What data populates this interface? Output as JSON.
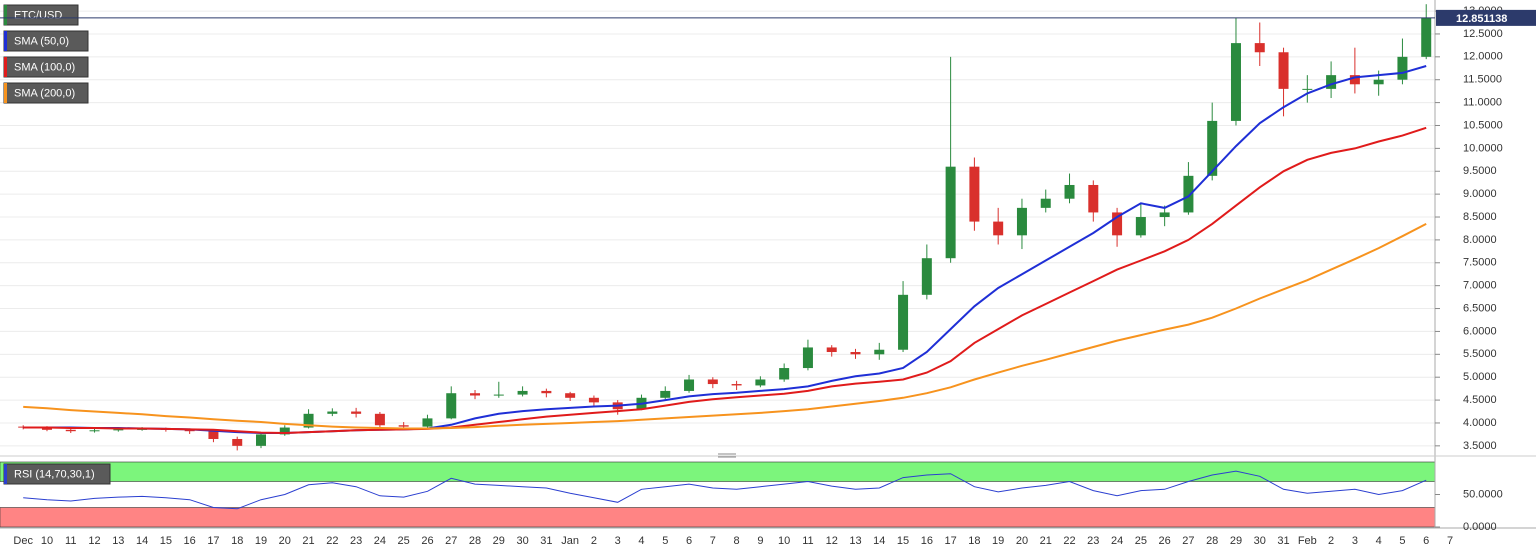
{
  "chart_data": {
    "type": "candlestick",
    "symbol": "ETC/USD",
    "up_color": "#2a8a3e",
    "down_color": "#d9302c",
    "categories": [
      "Dec",
      "10",
      "11",
      "12",
      "13",
      "14",
      "15",
      "16",
      "17",
      "18",
      "19",
      "20",
      "21",
      "22",
      "23",
      "24",
      "25",
      "26",
      "27",
      "28",
      "29",
      "30",
      "31",
      "Jan",
      "2",
      "3",
      "4",
      "5",
      "6",
      "7",
      "8",
      "9",
      "10",
      "11",
      "12",
      "13",
      "14",
      "15",
      "16",
      "17",
      "18",
      "19",
      "20",
      "21",
      "22",
      "23",
      "24",
      "25",
      "26",
      "27",
      "28",
      "29",
      "30",
      "31",
      "Feb",
      "2",
      "3",
      "4",
      "5",
      "6",
      "7"
    ],
    "open": [
      3.92,
      3.9,
      3.85,
      3.82,
      3.84,
      3.86,
      3.87,
      3.85,
      3.82,
      3.65,
      3.5,
      3.75,
      3.9,
      4.2,
      4.25,
      4.2,
      3.95,
      3.92,
      4.1,
      4.65,
      4.6,
      4.62,
      4.7,
      4.65,
      4.55,
      4.45,
      4.3,
      4.55,
      4.7,
      4.95,
      4.85,
      4.82,
      4.95,
      5.2,
      5.65,
      5.55,
      5.5,
      5.6,
      6.8,
      7.6,
      9.6,
      8.4,
      8.1,
      8.7,
      8.9,
      9.2,
      8.6,
      8.1,
      8.5,
      8.6,
      9.4,
      10.6,
      12.3,
      12.1,
      11.3,
      11.3,
      11.6,
      11.4,
      11.5,
      12.0,
      null
    ],
    "high": [
      3.95,
      3.93,
      3.88,
      3.88,
      3.9,
      3.91,
      3.9,
      3.88,
      3.85,
      3.7,
      3.8,
      3.95,
      4.3,
      4.32,
      4.33,
      4.24,
      4.02,
      4.18,
      4.8,
      4.72,
      4.9,
      4.8,
      4.75,
      4.68,
      4.6,
      4.5,
      4.62,
      4.8,
      5.05,
      5.0,
      4.92,
      5.02,
      5.3,
      5.82,
      5.7,
      5.62,
      5.75,
      7.1,
      7.9,
      12.0,
      9.8,
      8.7,
      8.9,
      9.1,
      9.45,
      9.3,
      8.7,
      8.8,
      8.75,
      9.7,
      11.0,
      12.85,
      12.75,
      12.2,
      11.6,
      11.9,
      12.2,
      11.7,
      12.4,
      13.15,
      null
    ],
    "low": [
      3.86,
      3.82,
      3.78,
      3.79,
      3.81,
      3.83,
      3.81,
      3.76,
      3.58,
      3.4,
      3.45,
      3.72,
      3.88,
      4.15,
      4.12,
      3.88,
      3.86,
      3.9,
      4.08,
      4.52,
      4.55,
      4.58,
      4.56,
      4.48,
      4.38,
      4.18,
      4.28,
      4.52,
      4.66,
      4.76,
      4.72,
      4.78,
      4.9,
      5.15,
      5.45,
      5.4,
      5.38,
      5.55,
      6.7,
      7.5,
      8.2,
      7.9,
      7.8,
      8.6,
      8.8,
      8.4,
      7.85,
      8.05,
      8.3,
      8.55,
      9.3,
      10.5,
      11.8,
      10.7,
      11.0,
      11.1,
      11.2,
      11.15,
      11.4,
      11.95,
      null
    ],
    "close": [
      3.9,
      3.85,
      3.82,
      3.84,
      3.86,
      3.87,
      3.85,
      3.82,
      3.65,
      3.5,
      3.75,
      3.9,
      4.2,
      4.25,
      4.2,
      3.95,
      3.92,
      4.1,
      4.65,
      4.6,
      4.62,
      4.7,
      4.65,
      4.55,
      4.45,
      4.3,
      4.55,
      4.7,
      4.95,
      4.85,
      4.82,
      4.95,
      5.2,
      5.65,
      5.55,
      5.5,
      5.6,
      6.8,
      7.6,
      9.6,
      8.4,
      8.1,
      8.7,
      8.9,
      9.2,
      8.6,
      8.1,
      8.5,
      8.6,
      9.4,
      10.6,
      12.3,
      12.1,
      11.3,
      11.3,
      11.6,
      11.4,
      11.5,
      12.0,
      12.85,
      null
    ],
    "series": [
      {
        "name": "SMA (50,0)",
        "color": "#1f2fd6",
        "values": [
          3.9,
          3.9,
          3.9,
          3.89,
          3.89,
          3.88,
          3.87,
          3.86,
          3.83,
          3.8,
          3.78,
          3.78,
          3.8,
          3.82,
          3.84,
          3.85,
          3.86,
          3.88,
          3.96,
          4.1,
          4.2,
          4.26,
          4.3,
          4.33,
          4.36,
          4.38,
          4.42,
          4.5,
          4.58,
          4.63,
          4.66,
          4.7,
          4.74,
          4.8,
          4.92,
          5.02,
          5.08,
          5.2,
          5.55,
          6.05,
          6.55,
          6.95,
          7.25,
          7.55,
          7.85,
          8.15,
          8.5,
          8.8,
          8.7,
          8.95,
          9.5,
          10.05,
          10.55,
          10.9,
          11.2,
          11.4,
          11.55,
          11.6,
          11.65,
          11.8,
          null
        ]
      },
      {
        "name": "SMA (100,0)",
        "color": "#e01b1b",
        "values": [
          3.9,
          3.9,
          3.89,
          3.89,
          3.88,
          3.88,
          3.87,
          3.86,
          3.85,
          3.82,
          3.79,
          3.78,
          3.8,
          3.82,
          3.84,
          3.85,
          3.86,
          3.87,
          3.9,
          3.96,
          4.02,
          4.08,
          4.14,
          4.18,
          4.22,
          4.26,
          4.3,
          4.38,
          4.46,
          4.52,
          4.56,
          4.6,
          4.64,
          4.7,
          4.8,
          4.86,
          4.9,
          4.95,
          5.1,
          5.35,
          5.75,
          6.05,
          6.35,
          6.6,
          6.85,
          7.1,
          7.35,
          7.55,
          7.75,
          8.0,
          8.35,
          8.75,
          9.15,
          9.5,
          9.75,
          9.9,
          10.0,
          10.15,
          10.28,
          10.45,
          null
        ]
      },
      {
        "name": "SMA (200,0)",
        "color": "#f7931e",
        "values": [
          4.35,
          4.32,
          4.28,
          4.25,
          4.22,
          4.19,
          4.15,
          4.12,
          4.08,
          4.05,
          4.02,
          3.98,
          3.95,
          3.92,
          3.9,
          3.89,
          3.88,
          3.88,
          3.89,
          3.91,
          3.94,
          3.96,
          3.98,
          4.0,
          4.02,
          4.04,
          4.07,
          4.1,
          4.13,
          4.16,
          4.19,
          4.22,
          4.26,
          4.3,
          4.36,
          4.42,
          4.48,
          4.55,
          4.65,
          4.78,
          4.95,
          5.1,
          5.25,
          5.38,
          5.52,
          5.66,
          5.8,
          5.92,
          6.04,
          6.15,
          6.3,
          6.5,
          6.72,
          6.92,
          7.12,
          7.35,
          7.58,
          7.82,
          8.08,
          8.35,
          null
        ]
      }
    ],
    "ylim": [
      3.3,
      13.22
    ],
    "yticks": [
      {
        "value": 3.5,
        "label": "3.5000"
      },
      {
        "value": 4,
        "label": "4.0000"
      },
      {
        "value": 4.5,
        "label": "4.5000"
      },
      {
        "value": 5,
        "label": "5.0000"
      },
      {
        "value": 5.5,
        "label": "5.5000"
      },
      {
        "value": 6,
        "label": "6.0000"
      },
      {
        "value": 6.5,
        "label": "6.5000"
      },
      {
        "value": 7,
        "label": "7.0000"
      },
      {
        "value": 7.5,
        "label": "7.5000"
      },
      {
        "value": 8,
        "label": "8.0000"
      },
      {
        "value": 8.5,
        "label": "8.5000"
      },
      {
        "value": 9,
        "label": "9.0000"
      },
      {
        "value": 9.5,
        "label": "9.5000"
      },
      {
        "value": 10,
        "label": "10.0000"
      },
      {
        "value": 10.5,
        "label": "10.5000"
      },
      {
        "value": 11,
        "label": "11.0000"
      },
      {
        "value": 11.5,
        "label": "11.5000"
      },
      {
        "value": 12,
        "label": "12.0000"
      },
      {
        "value": 12.5,
        "label": "12.5000"
      },
      {
        "value": 13,
        "label": "13.0000"
      }
    ],
    "last_price": 12.851138,
    "grid": true,
    "rsi": {
      "name": "RSI (14,70,30,1)",
      "color": "#2b3fd0",
      "values": [
        45,
        42,
        40,
        44,
        46,
        47,
        45,
        42,
        30,
        28,
        42,
        50,
        65,
        68,
        62,
        48,
        46,
        55,
        75,
        66,
        64,
        62,
        60,
        52,
        45,
        38,
        58,
        62,
        66,
        60,
        58,
        62,
        66,
        70,
        63,
        58,
        60,
        76,
        80,
        82,
        62,
        54,
        60,
        64,
        70,
        56,
        48,
        56,
        58,
        70,
        80,
        86,
        78,
        58,
        52,
        55,
        58,
        50,
        56,
        72,
        null
      ],
      "ylim": [
        0,
        100
      ],
      "upper_band": [
        70,
        100
      ],
      "lower_band": [
        0,
        30
      ],
      "yticks": [
        {
          "value": 50,
          "label": "50.0000"
        },
        {
          "value": 0,
          "label": "0.0000"
        }
      ]
    }
  }
}
